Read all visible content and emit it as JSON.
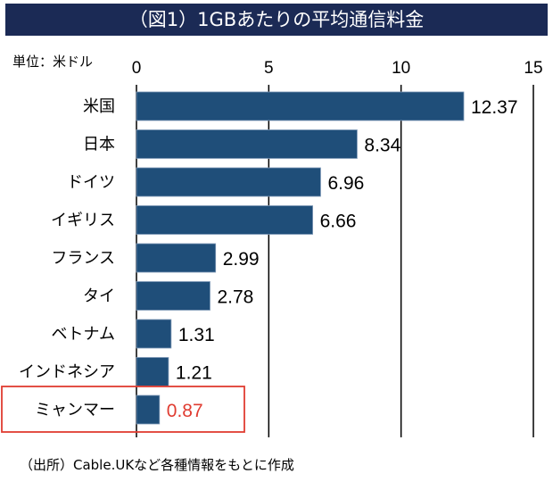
{
  "title": "（図1）1GBあたりの平均通信料金",
  "unit_label": "単位：米ドル",
  "source": "（出所）Cable.UKなど各種情報をもとに作成",
  "colors": {
    "title_bg": "#1b2a55",
    "bar": "#1f4e79",
    "highlight": "#e03c31",
    "text": "#000000"
  },
  "chart_data": {
    "type": "bar",
    "orientation": "horizontal",
    "categories": [
      "米国",
      "日本",
      "ドイツ",
      "イギリス",
      "フランス",
      "タイ",
      "ベトナム",
      "インドネシア",
      "ミャンマー"
    ],
    "values": [
      12.37,
      8.34,
      6.96,
      6.66,
      2.99,
      2.78,
      1.31,
      1.21,
      0.87
    ],
    "value_labels": [
      "12.37",
      "8.34",
      "6.96",
      "6.66",
      "2.99",
      "2.78",
      "1.31",
      "1.21",
      "0.87"
    ],
    "highlighted_category": "ミャンマー",
    "xlim": [
      0,
      15
    ],
    "xticks": [
      0,
      5,
      10,
      15
    ],
    "xtick_labels": [
      "0",
      "5",
      "10",
      "15"
    ],
    "x_axis_position": "top",
    "grid": true
  }
}
